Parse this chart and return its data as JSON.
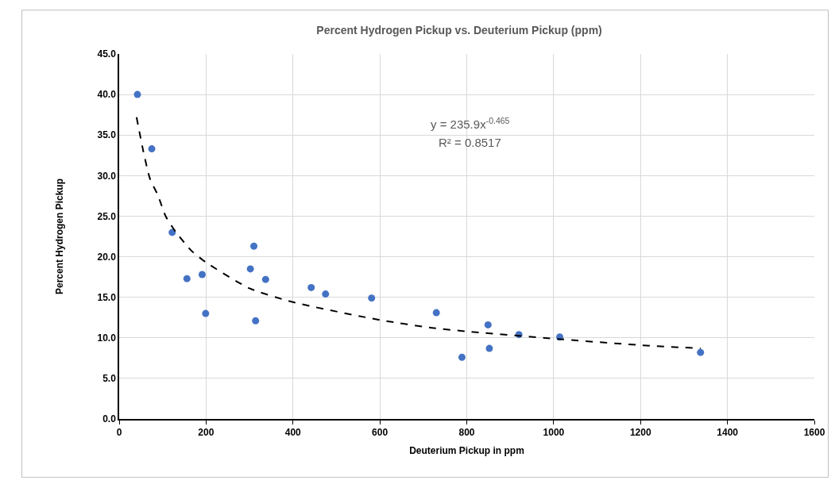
{
  "chart_data": {
    "type": "scatter",
    "title": "Percent Hydrogen Pickup vs. Deuterium Pickup (ppm)",
    "xlabel": "Deuterium Pickup in ppm",
    "ylabel": "Percent Hydrogen Pickup",
    "annotations": [
      "y = 235.9x$^{-0.465}$",
      "R² = 0.8517"
    ],
    "series": [
      {
        "color": "#4472c4",
        "marker": "circle",
        "x": [
          42,
          75,
          122,
          156,
          191,
          199,
          302,
          310,
          314,
          337,
          442,
          475,
          581,
          730,
          789,
          849,
          852,
          920,
          1014,
          1338
        ],
        "values": [
          40.0,
          33.3,
          23.0,
          17.3,
          17.8,
          13.0,
          18.5,
          21.3,
          12.1,
          17.2,
          16.2,
          15.4,
          14.9,
          13.1,
          7.6,
          11.6,
          8.7,
          10.4,
          10.1,
          8.2
        ]
      },
      {
        "type": "line",
        "color": "#000000",
        "line_style": "dashed",
        "marker": "none",
        "x": [
          40,
          56,
          71,
          89,
          107,
          131,
          167,
          200,
          300,
          400,
          600,
          724,
          799,
          999,
          1199,
          1338
        ],
        "values": [
          37.2,
          32.9,
          29.6,
          27.6,
          25.0,
          23.0,
          20.7,
          19.3,
          16.1,
          14.4,
          12.2,
          11.2,
          10.8,
          9.9,
          9.1,
          8.7
        ]
      }
    ],
    "xlim": [
      0,
      1600
    ],
    "xticks": [
      0,
      200,
      400,
      600,
      800,
      1000,
      1200,
      1400,
      1600
    ],
    "ylim": [
      0,
      45
    ],
    "yticks": [
      {
        "value": 0,
        "label": "0.0"
      },
      {
        "value": 5,
        "label": "5.0"
      },
      {
        "value": 10,
        "label": "10.0"
      },
      {
        "value": 15,
        "label": "15.0"
      },
      {
        "value": 20,
        "label": "20.0"
      },
      {
        "value": 25,
        "label": "25.0"
      },
      {
        "value": 30,
        "label": "30.0"
      },
      {
        "value": 35,
        "label": "35.0"
      },
      {
        "value": 40,
        "label": "40.0"
      },
      {
        "value": 45,
        "label": "45.0"
      }
    ],
    "grid": true
  }
}
